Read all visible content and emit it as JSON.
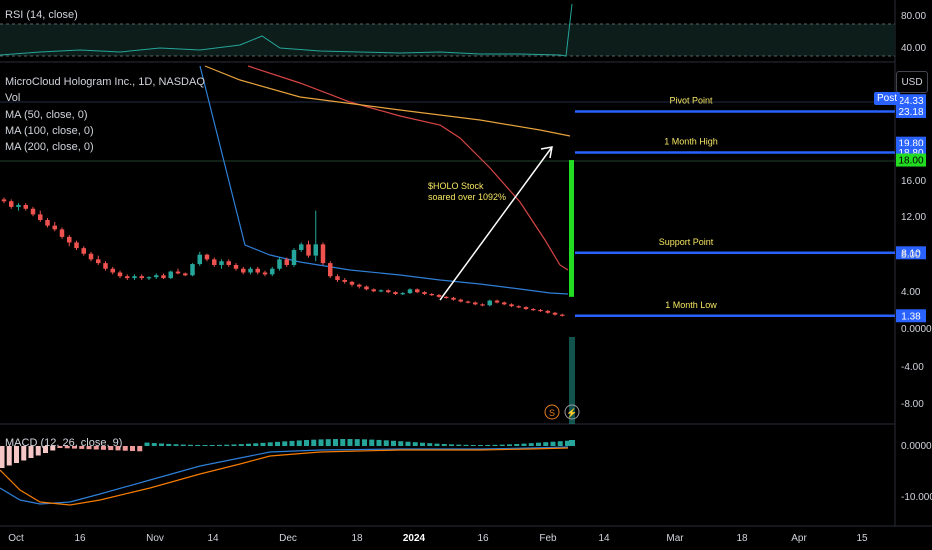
{
  "panes": {
    "rsi": {
      "label": "RSI (14, close)",
      "levels": [
        "80.00",
        "40.00"
      ]
    },
    "macd": {
      "label": "MACD (12, 26, close, 9)",
      "levels": [
        "0.0000",
        "-10.0000"
      ]
    }
  },
  "legend": {
    "symbol": "MicroCloud Hologram Inc., 1D, NASDAQ",
    "vol": "Vol",
    "ma50": "MA (50, close, 0)",
    "ma100": "MA (100, close, 0)",
    "ma200": "MA (200, close, 0)"
  },
  "currency_button": "USD",
  "post_badge": "Post",
  "colors": {
    "up": "#26a69a",
    "down": "#ef5350",
    "bright_up": "#22dd22",
    "ma50": "#2f7fd6",
    "ma100": "#d64545",
    "ma200": "#e6a23c",
    "level_line": "#2962ff",
    "annotation": "#f5e663"
  },
  "chart_data": {
    "type": "candlestick",
    "x_ticks": [
      "Oct",
      "16",
      "Nov",
      "14",
      "Dec",
      "18",
      "2024",
      "16",
      "Feb",
      "14",
      "Mar",
      "18",
      "Apr",
      "15"
    ],
    "y_ticks": [
      "16.00",
      "12.00",
      "8.00",
      "4.00",
      "0.0000",
      "-4.00",
      "-8.00"
    ],
    "ylim": [
      -10,
      22
    ],
    "price_labels": [
      {
        "text": "24.33",
        "value": 24.33,
        "color": "#2962ff"
      },
      {
        "text": "23.18",
        "value": 23.18,
        "color": "#2962ff"
      },
      {
        "text": "19.80",
        "value": 19.8,
        "color": "#2962ff"
      },
      {
        "text": "18.80",
        "value": 18.8,
        "color": "#2962ff"
      },
      {
        "text": "18.00",
        "value": 18.0,
        "color": "#22dd22"
      },
      {
        "text": "8.10",
        "value": 8.1,
        "color": "#2962ff"
      },
      {
        "text": "1.38",
        "value": 1.38,
        "color": "#2962ff"
      }
    ],
    "levels": [
      {
        "name": "Pivot Point",
        "value": 23.18
      },
      {
        "name": "1 Month High",
        "value": 18.8
      },
      {
        "name": "Support Point",
        "value": 8.1
      },
      {
        "name": "1 Month Low",
        "value": 1.38
      }
    ],
    "annotation": [
      "$HOLO Stock",
      "soared over 1092%"
    ],
    "markers": [
      "S",
      "⚡"
    ],
    "candles": [
      [
        13.8,
        14.0,
        13.4,
        13.6
      ],
      [
        13.6,
        13.8,
        12.8,
        13.0
      ],
      [
        13.0,
        13.4,
        12.6,
        13.2
      ],
      [
        13.2,
        13.4,
        12.6,
        12.8
      ],
      [
        12.8,
        13.0,
        12.0,
        12.2
      ],
      [
        12.2,
        12.6,
        11.4,
        11.6
      ],
      [
        11.6,
        11.8,
        10.8,
        11.0
      ],
      [
        11.0,
        11.4,
        10.4,
        10.6
      ],
      [
        10.6,
        10.8,
        9.6,
        9.8
      ],
      [
        9.8,
        10.0,
        8.8,
        9.2
      ],
      [
        9.2,
        9.4,
        8.4,
        8.6
      ],
      [
        8.6,
        8.8,
        7.8,
        8.0
      ],
      [
        8.0,
        8.2,
        7.2,
        7.4
      ],
      [
        7.4,
        7.8,
        6.8,
        7.0
      ],
      [
        7.0,
        7.2,
        6.2,
        6.4
      ],
      [
        6.4,
        6.6,
        5.8,
        6.0
      ],
      [
        6.0,
        6.2,
        5.4,
        5.6
      ],
      [
        5.6,
        5.8,
        5.2,
        5.4
      ],
      [
        5.4,
        5.8,
        5.2,
        5.6
      ],
      [
        5.6,
        5.8,
        5.2,
        5.4
      ],
      [
        5.4,
        5.6,
        5.2,
        5.5
      ],
      [
        5.5,
        5.9,
        5.3,
        5.7
      ],
      [
        5.7,
        5.9,
        5.3,
        5.4
      ],
      [
        5.4,
        6.2,
        5.3,
        6.1
      ],
      [
        6.1,
        6.4,
        5.8,
        5.9
      ],
      [
        5.9,
        6.0,
        5.6,
        5.7
      ],
      [
        5.7,
        7.0,
        5.6,
        6.9
      ],
      [
        6.9,
        8.2,
        6.7,
        7.9
      ],
      [
        7.9,
        8.0,
        7.2,
        7.4
      ],
      [
        7.4,
        7.6,
        6.6,
        6.8
      ],
      [
        6.8,
        7.4,
        6.4,
        7.2
      ],
      [
        7.2,
        7.4,
        6.6,
        6.8
      ],
      [
        6.8,
        7.0,
        6.2,
        6.4
      ],
      [
        6.4,
        6.6,
        5.8,
        6.0
      ],
      [
        6.0,
        6.6,
        5.8,
        6.4
      ],
      [
        6.4,
        6.6,
        5.8,
        6.0
      ],
      [
        6.0,
        6.2,
        5.6,
        5.8
      ],
      [
        5.8,
        6.6,
        5.6,
        6.4
      ],
      [
        6.4,
        7.6,
        6.2,
        7.4
      ],
      [
        7.4,
        7.6,
        6.6,
        6.8
      ],
      [
        6.8,
        8.6,
        6.6,
        8.4
      ],
      [
        8.4,
        9.2,
        8.2,
        9.0
      ],
      [
        9.0,
        9.4,
        7.6,
        7.8
      ],
      [
        7.8,
        12.6,
        7.2,
        9.0
      ],
      [
        9.0,
        9.2,
        6.8,
        7.0
      ],
      [
        7.0,
        7.2,
        5.4,
        5.6
      ],
      [
        5.6,
        5.8,
        5.0,
        5.2
      ],
      [
        5.2,
        5.4,
        4.8,
        5.0
      ],
      [
        5.0,
        5.1,
        4.5,
        4.7
      ],
      [
        4.7,
        4.8,
        4.3,
        4.5
      ],
      [
        4.5,
        4.6,
        4.1,
        4.2
      ],
      [
        4.2,
        4.3,
        3.9,
        4.0
      ],
      [
        4.0,
        4.2,
        3.9,
        4.1
      ],
      [
        4.1,
        4.2,
        3.8,
        3.9
      ],
      [
        3.9,
        4.0,
        3.6,
        3.7
      ],
      [
        3.7,
        3.9,
        3.6,
        3.8
      ],
      [
        3.8,
        4.3,
        3.7,
        4.2
      ],
      [
        4.2,
        4.3,
        3.8,
        3.9
      ],
      [
        3.9,
        4.0,
        3.6,
        3.7
      ],
      [
        3.7,
        3.8,
        3.5,
        3.6
      ],
      [
        3.6,
        3.7,
        3.3,
        3.4
      ],
      [
        3.4,
        3.5,
        3.2,
        3.3
      ],
      [
        3.3,
        3.4,
        3.0,
        3.1
      ],
      [
        3.1,
        3.2,
        2.8,
        2.9
      ],
      [
        2.9,
        3.0,
        2.7,
        2.8
      ],
      [
        2.8,
        2.9,
        2.5,
        2.6
      ],
      [
        2.6,
        2.7,
        2.4,
        2.5
      ],
      [
        2.5,
        3.1,
        2.4,
        3.0
      ],
      [
        3.0,
        3.1,
        2.7,
        2.8
      ],
      [
        2.8,
        2.9,
        2.5,
        2.6
      ],
      [
        2.6,
        2.7,
        2.3,
        2.4
      ],
      [
        2.4,
        2.5,
        2.2,
        2.3
      ],
      [
        2.3,
        2.4,
        2.0,
        2.1
      ],
      [
        2.1,
        2.2,
        1.9,
        2.0
      ],
      [
        2.0,
        2.1,
        1.8,
        1.9
      ],
      [
        1.9,
        2.0,
        1.6,
        1.7
      ],
      [
        1.7,
        1.8,
        1.4,
        1.5
      ],
      [
        1.5,
        1.6,
        1.3,
        1.4
      ]
    ],
    "last_candle": {
      "open": 3.4,
      "high": 18.0,
      "low": 3.4,
      "close": 18.0
    }
  }
}
